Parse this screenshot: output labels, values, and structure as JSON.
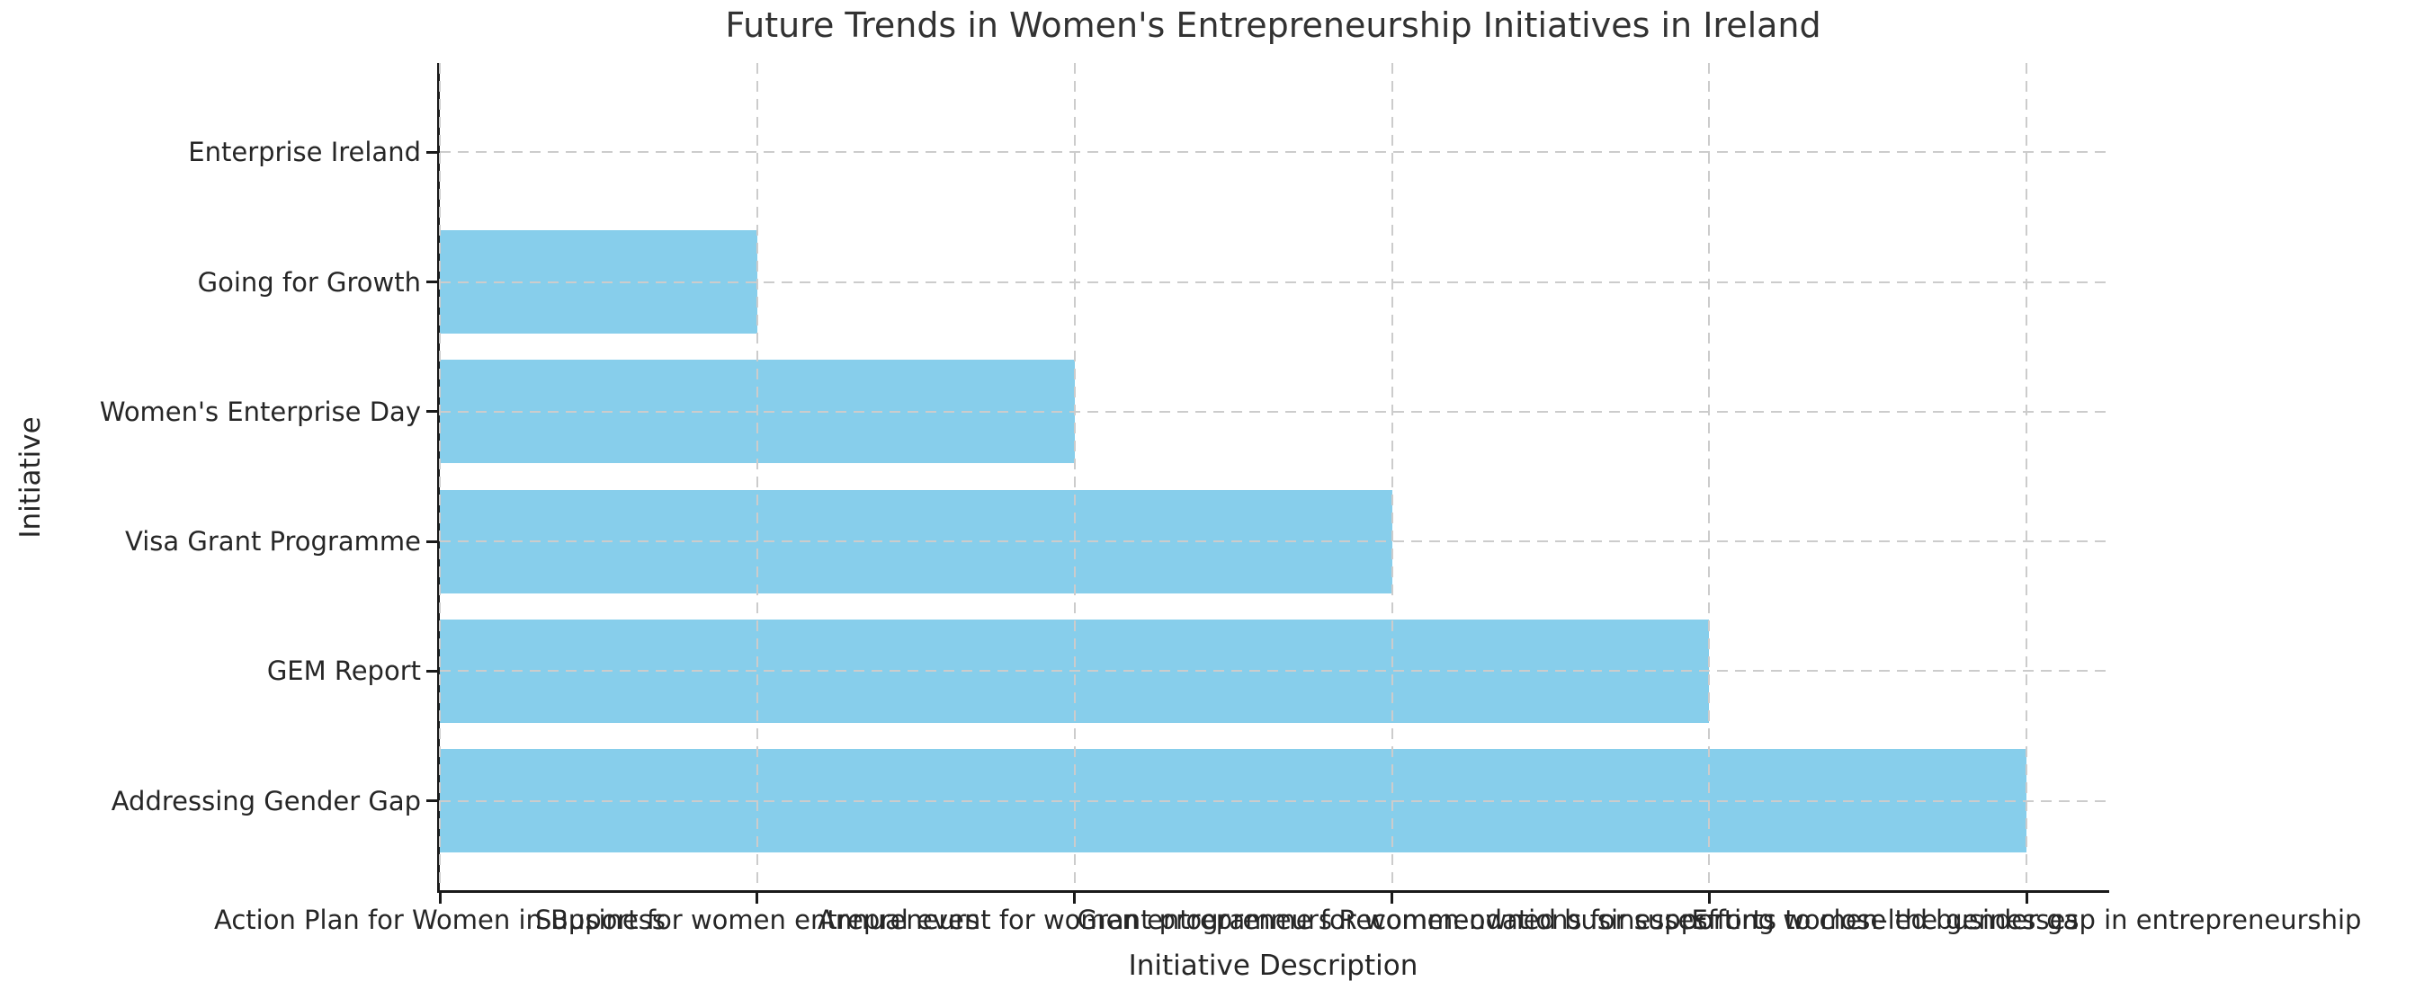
{
  "chart_data": {
    "type": "bar",
    "orientation": "horizontal",
    "title": "Future Trends in Women's Entrepreneurship Initiatives in Ireland",
    "xlabel": "Initiative Description",
    "ylabel": "Initiative",
    "categories": [
      "Enterprise Ireland",
      "Going for Growth",
      "Women's Enterprise Day",
      "Visa Grant Programme",
      "GEM Report",
      "Addressing Gender Gap"
    ],
    "values": [
      0,
      1,
      2,
      3,
      4,
      5
    ],
    "descriptions": [
      "Action Plan for Women in Business",
      "Support for women entrepreneurs",
      "Annual event for women entrepreneurs",
      "Grant programme for women-owned businesses",
      "Recommendations for supporting women-led businesses",
      "Efforts to close the gender gap in entrepreneurship"
    ],
    "xticks": [
      0,
      1,
      2,
      3,
      4,
      5
    ],
    "xtick_labels": [
      "Action Plan for Women in Business",
      "Support for women entrepreneurs",
      "Annual event for women entrepreneurs",
      "Grant programme for women-owned businesses",
      "Recommendations for supporting women-led businesses",
      "Efforts to close the gender gap in entrepreneurship"
    ],
    "xlim": [
      0,
      5.26
    ],
    "ylim": [
      -0.69,
      5.69
    ],
    "bar_thickness": 0.8,
    "bar_color": "#87CEEB",
    "grid": true,
    "grid_style": "dashed",
    "grid_color": "#cccccc",
    "grid_above_bars": true,
    "spine_color": "#1a1a1a",
    "text_color": "#262626",
    "background": "#ffffff",
    "legend": null
  }
}
